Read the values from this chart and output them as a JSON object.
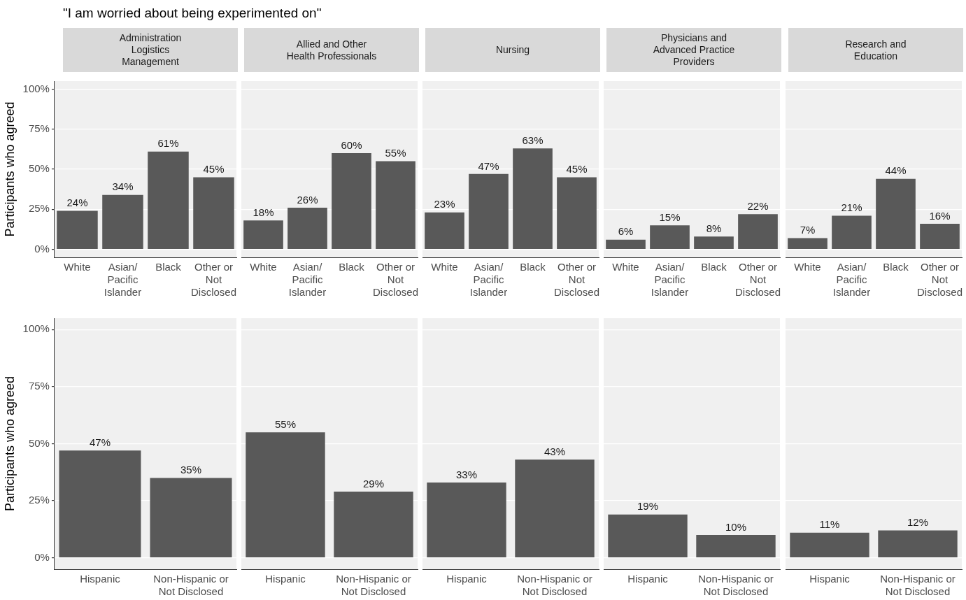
{
  "chart_data": [
    {
      "type": "bar",
      "title": "\"I am worried about being experimented on\"",
      "subtitle": "Administration\nLogistics\nManagement",
      "ylabel": "Participants who agreed",
      "categories": [
        "White",
        "Asian/\nPacific\nIslander",
        "Black",
        "Other or\nNot\nDisclosed"
      ],
      "values": [
        24,
        34,
        61,
        45
      ],
      "value_labels": [
        "24%",
        "34%",
        "61%",
        "45%"
      ],
      "color": "#595959",
      "ylim": [
        -5,
        105
      ],
      "yticks": [
        {
          "value": 0,
          "label": "0%"
        },
        {
          "value": 25,
          "label": "25%"
        },
        {
          "value": 50,
          "label": "50%"
        },
        {
          "value": 75,
          "label": "75%"
        },
        {
          "value": 100,
          "label": "100%"
        }
      ],
      "grid": "y",
      "legend": false
    },
    {
      "type": "bar",
      "subtitle": "Allied and Other\nHealth Professionals",
      "categories": [
        "White",
        "Asian/\nPacific\nIslander",
        "Black",
        "Other or\nNot\nDisclosed"
      ],
      "values": [
        18,
        26,
        60,
        55
      ],
      "value_labels": [
        "18%",
        "26%",
        "60%",
        "55%"
      ],
      "color": "#595959",
      "ylim": [
        -5,
        105
      ],
      "yticks": [
        {
          "value": 0,
          "label": null
        },
        {
          "value": 25,
          "label": null
        },
        {
          "value": 50,
          "label": null
        },
        {
          "value": 75,
          "label": null
        },
        {
          "value": 100,
          "label": null
        }
      ],
      "tick_labels": "x",
      "grid": "y",
      "legend": false
    },
    {
      "type": "bar",
      "subtitle": "Nursing",
      "categories": [
        "White",
        "Asian/\nPacific\nIslander",
        "Black",
        "Other or\nNot\nDisclosed"
      ],
      "values": [
        23,
        47,
        63,
        45
      ],
      "value_labels": [
        "23%",
        "47%",
        "63%",
        "45%"
      ],
      "color": "#595959",
      "ylim": [
        -5,
        105
      ],
      "yticks": [
        {
          "value": 0,
          "label": null
        },
        {
          "value": 25,
          "label": null
        },
        {
          "value": 50,
          "label": null
        },
        {
          "value": 75,
          "label": null
        },
        {
          "value": 100,
          "label": null
        }
      ],
      "tick_labels": "x",
      "grid": "y",
      "legend": false
    },
    {
      "type": "bar",
      "subtitle": "Physicians and\nAdvanced Practice\nProviders",
      "categories": [
        "White",
        "Asian/\nPacific\nIslander",
        "Black",
        "Other or\nNot\nDisclosed"
      ],
      "values": [
        6,
        15,
        8,
        22
      ],
      "value_labels": [
        "6%",
        "15%",
        "8%",
        "22%"
      ],
      "color": "#595959",
      "ylim": [
        -5,
        105
      ],
      "yticks": [
        {
          "value": 0,
          "label": null
        },
        {
          "value": 25,
          "label": null
        },
        {
          "value": 50,
          "label": null
        },
        {
          "value": 75,
          "label": null
        },
        {
          "value": 100,
          "label": null
        }
      ],
      "tick_labels": "x",
      "grid": "y",
      "legend": false
    },
    {
      "type": "bar",
      "subtitle": "Research and\nEducation",
      "categories": [
        "White",
        "Asian/\nPacific\nIslander",
        "Black",
        "Other or\nNot\nDisclosed"
      ],
      "values": [
        7,
        21,
        44,
        16
      ],
      "value_labels": [
        "7%",
        "21%",
        "44%",
        "16%"
      ],
      "color": "#595959",
      "ylim": [
        -5,
        105
      ],
      "yticks": [
        {
          "value": 0,
          "label": null
        },
        {
          "value": 25,
          "label": null
        },
        {
          "value": 50,
          "label": null
        },
        {
          "value": 75,
          "label": null
        },
        {
          "value": 100,
          "label": null
        }
      ],
      "tick_labels": "x",
      "grid": "y",
      "legend": false
    },
    {
      "type": "bar",
      "ylabel": "Participants who agreed",
      "categories": [
        "Hispanic",
        "Non-Hispanic or\nNot Disclosed"
      ],
      "values": [
        47,
        35
      ],
      "value_labels": [
        "47%",
        "35%"
      ],
      "color": "#595959",
      "ylim": [
        -5,
        105
      ],
      "yticks": [
        {
          "value": 0,
          "label": "0%"
        },
        {
          "value": 25,
          "label": "25%"
        },
        {
          "value": 50,
          "label": "50%"
        },
        {
          "value": 75,
          "label": "75%"
        },
        {
          "value": 100,
          "label": "100%"
        }
      ],
      "grid": "y",
      "legend": false
    },
    {
      "type": "bar",
      "categories": [
        "Hispanic",
        "Non-Hispanic or\nNot Disclosed"
      ],
      "values": [
        55,
        29
      ],
      "value_labels": [
        "55%",
        "29%"
      ],
      "color": "#595959",
      "ylim": [
        -5,
        105
      ],
      "yticks": [
        {
          "value": 0,
          "label": null
        },
        {
          "value": 25,
          "label": null
        },
        {
          "value": 50,
          "label": null
        },
        {
          "value": 75,
          "label": null
        },
        {
          "value": 100,
          "label": null
        }
      ],
      "tick_labels": "x",
      "grid": "y",
      "legend": false
    },
    {
      "type": "bar",
      "categories": [
        "Hispanic",
        "Non-Hispanic or\nNot Disclosed"
      ],
      "values": [
        33,
        43
      ],
      "value_labels": [
        "33%",
        "43%"
      ],
      "color": "#595959",
      "ylim": [
        -5,
        105
      ],
      "yticks": [
        {
          "value": 0,
          "label": null
        },
        {
          "value": 25,
          "label": null
        },
        {
          "value": 50,
          "label": null
        },
        {
          "value": 75,
          "label": null
        },
        {
          "value": 100,
          "label": null
        }
      ],
      "tick_labels": "x",
      "grid": "y",
      "legend": false
    },
    {
      "type": "bar",
      "categories": [
        "Hispanic",
        "Non-Hispanic or\nNot Disclosed"
      ],
      "values": [
        19,
        10
      ],
      "value_labels": [
        "19%",
        "10%"
      ],
      "color": "#595959",
      "ylim": [
        -5,
        105
      ],
      "yticks": [
        {
          "value": 0,
          "label": null
        },
        {
          "value": 25,
          "label": null
        },
        {
          "value": 50,
          "label": null
        },
        {
          "value": 75,
          "label": null
        },
        {
          "value": 100,
          "label": null
        }
      ],
      "tick_labels": "x",
      "grid": "y",
      "legend": false
    },
    {
      "type": "bar",
      "categories": [
        "Hispanic",
        "Non-Hispanic or\nNot Disclosed"
      ],
      "values": [
        11,
        12
      ],
      "value_labels": [
        "11%",
        "12%"
      ],
      "color": "#595959",
      "ylim": [
        -5,
        105
      ],
      "yticks": [
        {
          "value": 0,
          "label": null
        },
        {
          "value": 25,
          "label": null
        },
        {
          "value": 50,
          "label": null
        },
        {
          "value": 75,
          "label": null
        },
        {
          "value": 100,
          "label": null
        }
      ],
      "tick_labels": "x",
      "grid": "y",
      "legend": false
    }
  ]
}
